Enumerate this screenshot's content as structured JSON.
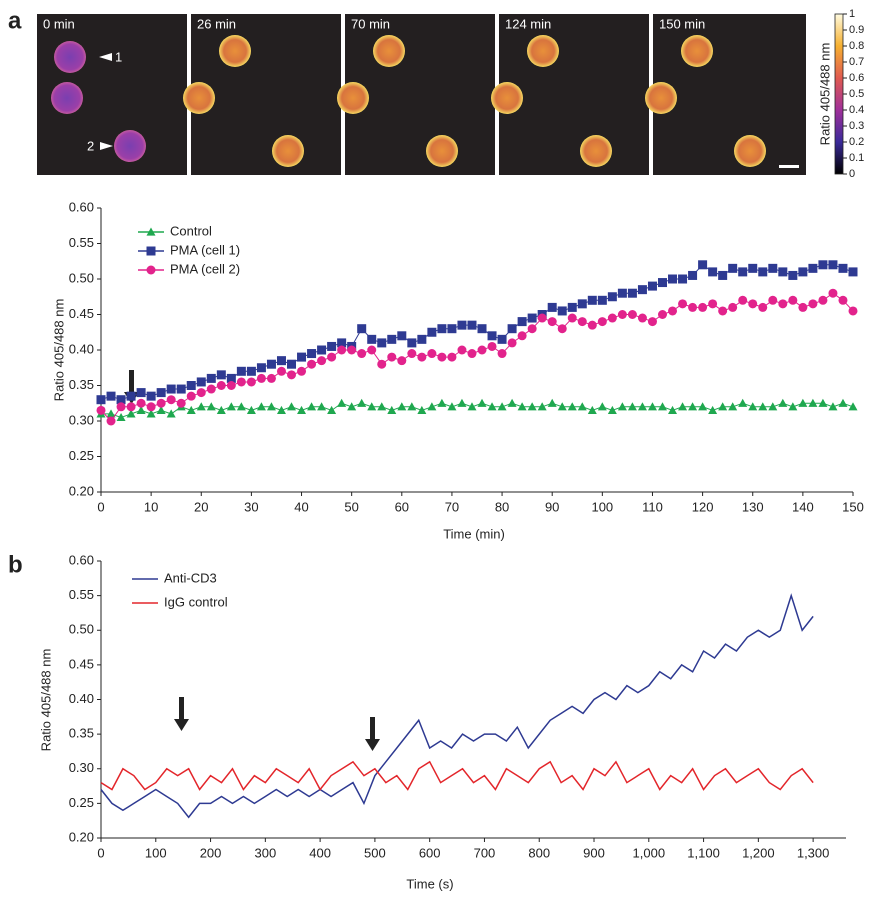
{
  "panel_labels": [
    "a",
    "b"
  ],
  "image_strip": {
    "frames": [
      "0 min",
      "26 min",
      "70 min",
      "124 min",
      "150 min"
    ],
    "cell_markers": [
      "1",
      "2"
    ],
    "colorbar": {
      "label": "Ratio 405/488 nm",
      "lim": [
        0,
        1
      ],
      "ticks": [
        0,
        0.1,
        0.2,
        0.3,
        0.4,
        0.5,
        0.6,
        0.7,
        0.8,
        0.9,
        1
      ]
    }
  },
  "chart_data": [
    {
      "type": "line",
      "x_label": "Time (min)",
      "y_label": "Ratio 405/488 nm",
      "xlim": [
        0,
        150
      ],
      "ylim": [
        0.2,
        0.6
      ],
      "xticks": [
        0,
        10,
        20,
        30,
        40,
        50,
        60,
        70,
        80,
        90,
        100,
        110,
        120,
        130,
        140,
        150
      ],
      "yticks": [
        {
          "value": 0.2,
          "label": "0.20"
        },
        {
          "value": 0.25,
          "label": "0.25"
        },
        {
          "value": 0.3,
          "label": "0.30"
        },
        {
          "value": 0.35,
          "label": "0.35"
        },
        {
          "value": 0.4,
          "label": "0.40"
        },
        {
          "value": 0.45,
          "label": "0.45"
        },
        {
          "value": 0.5,
          "label": "0.50"
        },
        {
          "value": 0.55,
          "label": "0.55"
        },
        {
          "value": 0.6,
          "label": "0.60"
        }
      ],
      "x": [
        0,
        2,
        4,
        6,
        8,
        10,
        12,
        14,
        16,
        18,
        20,
        22,
        24,
        26,
        28,
        30,
        32,
        34,
        36,
        38,
        40,
        42,
        44,
        46,
        48,
        50,
        52,
        54,
        56,
        58,
        60,
        62,
        64,
        66,
        68,
        70,
        72,
        74,
        76,
        78,
        80,
        82,
        84,
        86,
        88,
        90,
        92,
        94,
        96,
        98,
        100,
        102,
        104,
        106,
        108,
        110,
        112,
        114,
        116,
        118,
        120,
        122,
        124,
        126,
        128,
        130,
        132,
        134,
        136,
        138,
        140,
        142,
        144,
        146,
        148,
        150
      ],
      "series": [
        {
          "name": "Control",
          "color": "#1fa84f",
          "marker": "triangle",
          "values": [
            0.31,
            0.31,
            0.305,
            0.31,
            0.315,
            0.31,
            0.315,
            0.31,
            0.32,
            0.315,
            0.32,
            0.32,
            0.315,
            0.32,
            0.32,
            0.315,
            0.32,
            0.32,
            0.315,
            0.32,
            0.315,
            0.32,
            0.32,
            0.315,
            0.325,
            0.32,
            0.325,
            0.32,
            0.32,
            0.315,
            0.32,
            0.32,
            0.315,
            0.32,
            0.325,
            0.32,
            0.325,
            0.32,
            0.325,
            0.32,
            0.32,
            0.325,
            0.32,
            0.32,
            0.32,
            0.325,
            0.32,
            0.32,
            0.32,
            0.315,
            0.32,
            0.315,
            0.32,
            0.32,
            0.32,
            0.32,
            0.32,
            0.315,
            0.32,
            0.32,
            0.32,
            0.315,
            0.32,
            0.32,
            0.325,
            0.32,
            0.32,
            0.32,
            0.325,
            0.32,
            0.325,
            0.325,
            0.325,
            0.32,
            0.325,
            0.32
          ]
        },
        {
          "name": "PMA (cell 1)",
          "color": "#2e3a92",
          "marker": "square",
          "values": [
            0.33,
            0.335,
            0.33,
            0.335,
            0.34,
            0.335,
            0.34,
            0.345,
            0.345,
            0.35,
            0.355,
            0.36,
            0.365,
            0.36,
            0.37,
            0.37,
            0.375,
            0.38,
            0.385,
            0.38,
            0.39,
            0.395,
            0.4,
            0.405,
            0.41,
            0.405,
            0.43,
            0.415,
            0.41,
            0.415,
            0.42,
            0.41,
            0.415,
            0.425,
            0.43,
            0.43,
            0.435,
            0.435,
            0.43,
            0.42,
            0.415,
            0.43,
            0.44,
            0.445,
            0.45,
            0.46,
            0.455,
            0.46,
            0.465,
            0.47,
            0.47,
            0.475,
            0.48,
            0.48,
            0.485,
            0.49,
            0.495,
            0.5,
            0.5,
            0.505,
            0.52,
            0.51,
            0.505,
            0.515,
            0.51,
            0.515,
            0.51,
            0.515,
            0.51,
            0.505,
            0.51,
            0.515,
            0.52,
            0.52,
            0.515,
            0.51
          ]
        },
        {
          "name": "PMA (cell 2)",
          "color": "#e2238c",
          "marker": "circle",
          "values": [
            0.315,
            0.3,
            0.32,
            0.32,
            0.325,
            0.32,
            0.325,
            0.33,
            0.325,
            0.335,
            0.34,
            0.345,
            0.35,
            0.35,
            0.355,
            0.355,
            0.36,
            0.36,
            0.37,
            0.365,
            0.37,
            0.38,
            0.385,
            0.39,
            0.4,
            0.4,
            0.395,
            0.4,
            0.38,
            0.39,
            0.385,
            0.395,
            0.39,
            0.395,
            0.39,
            0.39,
            0.4,
            0.395,
            0.4,
            0.405,
            0.395,
            0.41,
            0.42,
            0.43,
            0.445,
            0.44,
            0.43,
            0.445,
            0.44,
            0.435,
            0.44,
            0.445,
            0.45,
            0.45,
            0.445,
            0.44,
            0.45,
            0.455,
            0.465,
            0.46,
            0.46,
            0.465,
            0.455,
            0.46,
            0.47,
            0.465,
            0.46,
            0.47,
            0.465,
            0.47,
            0.46,
            0.465,
            0.47,
            0.48,
            0.47,
            0.455
          ]
        }
      ]
    },
    {
      "type": "line",
      "x_label": "Time (s)",
      "y_label": "Ratio 405/488 nm",
      "xlim": [
        0,
        1360
      ],
      "ylim": [
        0.2,
        0.6
      ],
      "xticks": [
        0,
        100,
        200,
        300,
        400,
        500,
        600,
        700,
        800,
        900,
        {
          "value": 1000,
          "label": "1,000"
        },
        {
          "value": 1100,
          "label": "1,100"
        },
        {
          "value": 1200,
          "label": "1,200"
        },
        {
          "value": 1300,
          "label": "1,300"
        }
      ],
      "yticks": [
        {
          "value": 0.2,
          "label": "0.20"
        },
        {
          "value": 0.25,
          "label": "0.25"
        },
        {
          "value": 0.3,
          "label": "0.30"
        },
        {
          "value": 0.35,
          "label": "0.35"
        },
        {
          "value": 0.4,
          "label": "0.40"
        },
        {
          "value": 0.45,
          "label": "0.45"
        },
        {
          "value": 0.5,
          "label": "0.50"
        },
        {
          "value": 0.55,
          "label": "0.55"
        },
        {
          "value": 0.6,
          "label": "0.60"
        }
      ],
      "x": [
        0,
        20,
        40,
        60,
        80,
        100,
        120,
        140,
        160,
        180,
        200,
        220,
        240,
        260,
        280,
        300,
        320,
        340,
        360,
        380,
        400,
        420,
        440,
        460,
        480,
        500,
        520,
        540,
        560,
        580,
        600,
        620,
        640,
        660,
        680,
        700,
        720,
        740,
        760,
        780,
        800,
        820,
        840,
        860,
        880,
        900,
        920,
        940,
        960,
        980,
        1000,
        1020,
        1040,
        1060,
        1080,
        1100,
        1120,
        1140,
        1160,
        1180,
        1200,
        1220,
        1240,
        1260,
        1280,
        1300
      ],
      "series": [
        {
          "name": "Anti-CD3",
          "color": "#2e3a92",
          "values": [
            0.27,
            0.25,
            0.24,
            0.25,
            0.26,
            0.27,
            0.26,
            0.25,
            0.23,
            0.25,
            0.25,
            0.26,
            0.25,
            0.26,
            0.25,
            0.26,
            0.27,
            0.26,
            0.27,
            0.26,
            0.27,
            0.26,
            0.27,
            0.28,
            0.25,
            0.29,
            0.31,
            0.33,
            0.35,
            0.37,
            0.33,
            0.34,
            0.33,
            0.35,
            0.34,
            0.35,
            0.35,
            0.34,
            0.36,
            0.33,
            0.35,
            0.37,
            0.38,
            0.39,
            0.38,
            0.4,
            0.41,
            0.4,
            0.42,
            0.41,
            0.42,
            0.44,
            0.43,
            0.45,
            0.44,
            0.47,
            0.46,
            0.48,
            0.47,
            0.49,
            0.5,
            0.49,
            0.5,
            0.55,
            0.5,
            0.52
          ]
        },
        {
          "name": "IgG control",
          "color": "#e3262b",
          "values": [
            0.28,
            0.27,
            0.3,
            0.29,
            0.27,
            0.28,
            0.3,
            0.29,
            0.3,
            0.27,
            0.29,
            0.28,
            0.3,
            0.27,
            0.29,
            0.28,
            0.3,
            0.29,
            0.28,
            0.3,
            0.27,
            0.29,
            0.3,
            0.31,
            0.29,
            0.3,
            0.28,
            0.29,
            0.27,
            0.3,
            0.31,
            0.28,
            0.29,
            0.3,
            0.28,
            0.29,
            0.27,
            0.3,
            0.29,
            0.28,
            0.3,
            0.31,
            0.28,
            0.29,
            0.27,
            0.3,
            0.29,
            0.31,
            0.28,
            0.29,
            0.3,
            0.27,
            0.29,
            0.28,
            0.3,
            0.27,
            0.29,
            0.3,
            0.28,
            0.29,
            0.3,
            0.28,
            0.27,
            0.29,
            0.3,
            0.28
          ]
        }
      ]
    }
  ]
}
